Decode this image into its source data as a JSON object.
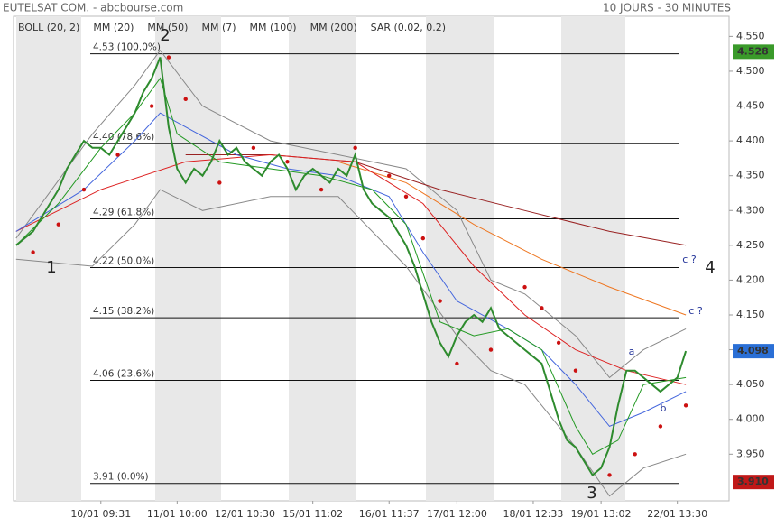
{
  "header": {
    "title": "EUTELSAT COM. - abcbourse.com",
    "period": "10 JOURS - 30 MINUTES"
  },
  "chart_data": {
    "type": "line",
    "legend": [
      {
        "name": "BOLL (20, 2)",
        "color": "#444444"
      },
      {
        "name": "MM (20)",
        "color": "#4466dd"
      },
      {
        "name": "MM (50)",
        "color": "#dd2222"
      },
      {
        "name": "MM (7)",
        "color": "#229922"
      },
      {
        "name": "MM (100)",
        "color": "#ee7722"
      },
      {
        "name": "MM (200)",
        "color": "#992222"
      },
      {
        "name": "SAR (0.02, 0.2)",
        "color": "#cc1111"
      }
    ],
    "xlim": [
      -0.3,
      84.1
    ],
    "xticks": [
      {
        "value": 10,
        "label": "10/01 09:31"
      },
      {
        "value": 19,
        "label": "11/01 10:00"
      },
      {
        "value": 27,
        "label": "12/01 10:30"
      },
      {
        "value": 35,
        "label": "15/01 11:02"
      },
      {
        "value": 44,
        "label": "16/01 11:37"
      },
      {
        "value": 52,
        "label": "17/01 12:00"
      },
      {
        "value": 61,
        "label": "18/01 12:33"
      },
      {
        "value": 69,
        "label": "19/01 13:02"
      },
      {
        "value": 78,
        "label": "22/01 13:30"
      }
    ],
    "ylim": [
      3.883,
      4.579
    ],
    "yticks": [
      {
        "value": 3.95,
        "label": "3.950"
      },
      {
        "value": 4.0,
        "label": "4.000"
      },
      {
        "value": 4.05,
        "label": "4.050"
      },
      {
        "value": 4.1,
        "label": "4.100"
      },
      {
        "value": 4.15,
        "label": "4.150"
      },
      {
        "value": 4.2,
        "label": "4.200"
      },
      {
        "value": 4.25,
        "label": "4.250"
      },
      {
        "value": 4.3,
        "label": "4.300"
      },
      {
        "value": 4.35,
        "label": "4.350"
      },
      {
        "value": 4.4,
        "label": "4.400"
      },
      {
        "value": 4.45,
        "label": "4.450"
      },
      {
        "value": 4.5,
        "label": "4.500"
      },
      {
        "value": 4.55,
        "label": "4.550"
      }
    ],
    "series": [
      {
        "kind": "band",
        "color": "#888888",
        "x": [
          0,
          9,
          14,
          17,
          22,
          30,
          38,
          46,
          52,
          56,
          60,
          66,
          70,
          74,
          79
        ],
        "values": [
          4.26,
          4.41,
          4.48,
          4.53,
          4.45,
          4.4,
          4.38,
          4.36,
          4.3,
          4.2,
          4.18,
          4.12,
          4.06,
          4.1,
          4.13
        ]
      },
      {
        "kind": "band",
        "color": "#888888",
        "x": [
          0,
          9,
          14,
          17,
          22,
          30,
          38,
          46,
          52,
          56,
          60,
          66,
          70,
          74,
          79
        ],
        "values": [
          4.23,
          4.22,
          4.28,
          4.33,
          4.3,
          4.32,
          4.32,
          4.22,
          4.12,
          4.07,
          4.05,
          3.96,
          3.89,
          3.93,
          3.95
        ]
      },
      {
        "kind": "line",
        "color": "#992222",
        "x": [
          20,
          30,
          40,
          50,
          60,
          70,
          79
        ],
        "values": [
          4.38,
          4.38,
          4.37,
          4.33,
          4.3,
          4.27,
          4.25
        ]
      },
      {
        "kind": "line",
        "color": "#ee7722",
        "x": [
          38,
          46,
          54,
          62,
          70,
          79
        ],
        "values": [
          4.37,
          4.34,
          4.28,
          4.23,
          4.19,
          4.15
        ]
      },
      {
        "kind": "line",
        "color": "#dd2222",
        "x": [
          0,
          10,
          20,
          30,
          40,
          48,
          54,
          60,
          66,
          72,
          79
        ],
        "values": [
          4.27,
          4.33,
          4.37,
          4.38,
          4.37,
          4.31,
          4.22,
          4.15,
          4.1,
          4.07,
          4.05
        ]
      },
      {
        "kind": "line",
        "color": "#4466dd",
        "x": [
          0,
          8,
          14,
          17,
          20,
          26,
          32,
          38,
          44,
          48,
          52,
          58,
          62,
          66,
          70,
          74,
          79
        ],
        "values": [
          4.27,
          4.33,
          4.4,
          4.44,
          4.42,
          4.38,
          4.36,
          4.35,
          4.32,
          4.24,
          4.17,
          4.13,
          4.1,
          4.05,
          3.99,
          4.01,
          4.04
        ]
      },
      {
        "kind": "line",
        "color": "#229922",
        "x": [
          0,
          5,
          10,
          14,
          17,
          19,
          24,
          30,
          36,
          42,
          46,
          50,
          54,
          58,
          62,
          66,
          68,
          71,
          74,
          79
        ],
        "values": [
          4.25,
          4.31,
          4.39,
          4.44,
          4.49,
          4.41,
          4.37,
          4.36,
          4.35,
          4.33,
          4.28,
          4.14,
          4.12,
          4.13,
          4.1,
          3.99,
          3.95,
          3.97,
          4.05,
          4.06
        ]
      },
      {
        "kind": "price",
        "color": "#2e8b2e",
        "x": [
          0,
          1,
          2,
          3,
          4,
          5,
          6,
          7,
          8,
          9,
          10,
          11,
          12,
          13,
          14,
          15,
          16,
          17,
          18,
          19,
          20,
          21,
          22,
          23,
          24,
          25,
          26,
          27,
          28,
          29,
          30,
          31,
          32,
          33,
          34,
          35,
          36,
          37,
          38,
          39,
          40,
          41,
          42,
          43,
          44,
          45,
          46,
          47,
          48,
          49,
          50,
          51,
          52,
          53,
          54,
          55,
          56,
          57,
          58,
          59,
          60,
          61,
          62,
          63,
          64,
          65,
          66,
          67,
          68,
          69,
          70,
          71,
          72,
          73,
          74,
          75,
          76,
          77,
          78,
          79
        ],
        "values": [
          4.25,
          4.26,
          4.27,
          4.29,
          4.31,
          4.33,
          4.36,
          4.38,
          4.4,
          4.39,
          4.39,
          4.38,
          4.4,
          4.42,
          4.44,
          4.47,
          4.49,
          4.52,
          4.42,
          4.36,
          4.34,
          4.36,
          4.35,
          4.37,
          4.4,
          4.38,
          4.39,
          4.37,
          4.36,
          4.35,
          4.37,
          4.38,
          4.36,
          4.33,
          4.35,
          4.36,
          4.35,
          4.34,
          4.36,
          4.35,
          4.38,
          4.33,
          4.31,
          4.3,
          4.29,
          4.27,
          4.25,
          4.22,
          4.18,
          4.14,
          4.11,
          4.09,
          4.12,
          4.14,
          4.15,
          4.14,
          4.16,
          4.13,
          4.12,
          4.11,
          4.1,
          4.09,
          4.08,
          4.04,
          4.0,
          3.97,
          3.96,
          3.94,
          3.92,
          3.93,
          3.96,
          4.02,
          4.07,
          4.07,
          4.06,
          4.05,
          4.04,
          4.05,
          4.06,
          4.098
        ]
      },
      {
        "kind": "dots",
        "color": "#cc1111",
        "x": [
          2,
          5,
          8,
          12,
          16,
          18,
          20,
          24,
          28,
          32,
          36,
          40,
          44,
          46,
          48,
          50,
          52,
          56,
          60,
          62,
          64,
          66,
          70,
          73,
          76,
          79
        ],
        "values": [
          4.24,
          4.28,
          4.33,
          4.38,
          4.45,
          4.52,
          4.46,
          4.34,
          4.39,
          4.37,
          4.33,
          4.39,
          4.35,
          4.32,
          4.26,
          4.17,
          4.08,
          4.1,
          4.19,
          4.16,
          4.11,
          4.07,
          3.92,
          3.95,
          3.99,
          4.02
        ]
      }
    ],
    "fib_levels": [
      {
        "value": 4.525,
        "label": "4.53  (100.0%)"
      },
      {
        "value": 4.396,
        "label": "4.40  (78.6%)"
      },
      {
        "value": 4.288,
        "label": "4.29  (61.8%)"
      },
      {
        "value": 4.218,
        "label": "4.22  (50.0%)"
      },
      {
        "value": 4.146,
        "label": "4.15  (38.2%)"
      },
      {
        "value": 4.056,
        "label": "4.06  (23.6%)"
      },
      {
        "value": 3.908,
        "label": "3.91  (0.0%)"
      }
    ],
    "price_badges": [
      {
        "value": 4.528,
        "label": "4.528",
        "color": "#3a9a2a"
      },
      {
        "value": 4.098,
        "label": "4.098",
        "color": "#2a6fd6"
      },
      {
        "value": 3.91,
        "label": "3.910",
        "color": "#c01818"
      }
    ],
    "annotations": [
      "1",
      "2",
      "3",
      "4",
      "a",
      "b",
      "c ?",
      "c ?"
    ]
  }
}
